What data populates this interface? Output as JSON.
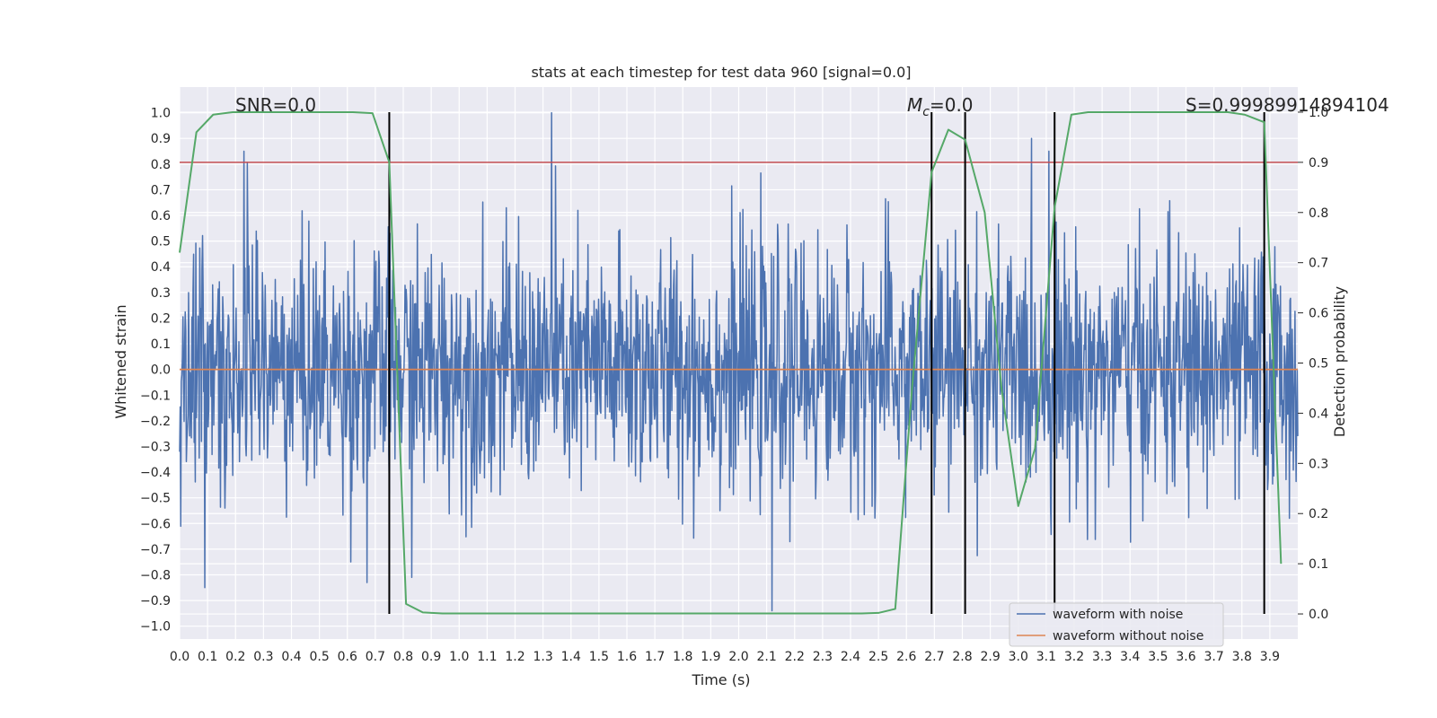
{
  "chart_data": {
    "type": "line",
    "title": "stats at each timestep for test data 960 [signal=0.0]",
    "xlabel": "Time (s)",
    "ylabel_left": "Whitened strain",
    "ylabel_right": "Detection probability",
    "xlim": [
      0.0,
      4.0
    ],
    "ylim_left": [
      -1.05,
      1.1
    ],
    "ylim_right": [
      -0.05,
      1.05
    ],
    "grid": true,
    "x_ticks": [
      "0.0",
      "0.1",
      "0.2",
      "0.3",
      "0.4",
      "0.5",
      "0.6",
      "0.7",
      "0.8",
      "0.9",
      "1.0",
      "1.1",
      "1.2",
      "1.3",
      "1.4",
      "1.5",
      "1.6",
      "1.7",
      "1.8",
      "1.9",
      "2.0",
      "2.1",
      "2.2",
      "2.3",
      "2.4",
      "2.5",
      "2.6",
      "2.7",
      "2.8",
      "2.9",
      "3.0",
      "3.1",
      "3.2",
      "3.3",
      "3.4",
      "3.5",
      "3.6",
      "3.7",
      "3.8",
      "3.9"
    ],
    "y_ticks_left": [
      "1.0",
      "0.9",
      "0.8",
      "0.7",
      "0.6",
      "0.5",
      "0.4",
      "0.3",
      "0.2",
      "0.1",
      "0.0",
      "−0.1",
      "−0.2",
      "−0.3",
      "−0.4",
      "−0.5",
      "−0.6",
      "−0.7",
      "−0.8",
      "−0.9",
      "−1.0"
    ],
    "y_ticks_right": [
      "1.0",
      "0.9",
      "0.8",
      "0.7",
      "0.6",
      "0.5",
      "0.4",
      "0.3",
      "0.2",
      "0.1",
      "0.0"
    ],
    "annotations": {
      "snr": "SNR=0.0",
      "mc_symbol": "M",
      "mc_sub": "c",
      "mc_value": "=0.0",
      "score": "S=0.99989914894104"
    },
    "legend": {
      "placement": "bottom-right",
      "entries": [
        "waveform with noise",
        "waveform without noise"
      ]
    },
    "colors": {
      "noise": "#4c72b0",
      "clean": "#dd8452",
      "probability": "#55a868",
      "threshold": "#c44e52",
      "markers": "#000000",
      "plot_background": "#eaeaf2"
    },
    "threshold_probability": 0.9,
    "marker_times": [
      0.75,
      2.69,
      2.81,
      3.13,
      3.88
    ],
    "probability_series": {
      "name": "",
      "x": [
        0.0,
        0.06,
        0.12,
        0.19,
        0.25,
        0.31,
        0.38,
        0.44,
        0.5,
        0.56,
        0.62,
        0.69,
        0.75,
        0.81,
        0.87,
        0.94,
        1.0,
        1.5,
        2.0,
        2.44,
        2.5,
        2.56,
        2.62,
        2.69,
        2.75,
        2.81,
        2.88,
        2.94,
        3.0,
        3.06,
        3.13,
        3.19,
        3.25,
        3.31,
        3.38,
        3.5,
        3.75,
        3.81,
        3.88,
        3.94
      ],
      "y": [
        0.72,
        0.96,
        0.995,
        1.0,
        1.0,
        1.0,
        1.0,
        1.0,
        1.0,
        1.0,
        1.0,
        0.998,
        0.9,
        0.02,
        0.003,
        0.001,
        0.001,
        0.001,
        0.001,
        0.001,
        0.002,
        0.01,
        0.45,
        0.88,
        0.965,
        0.945,
        0.8,
        0.45,
        0.215,
        0.33,
        0.81,
        0.995,
        1.0,
        1.0,
        1.0,
        1.0,
        1.0,
        0.995,
        0.98,
        0.1
      ]
    },
    "noise_series": {
      "name": "waveform with noise",
      "x_range": [
        0.0,
        4.0
      ],
      "approx_points": 2000,
      "envelope": [
        -0.94,
        1.0
      ],
      "notable_peaks": [
        {
          "x": 1.33,
          "y": 1.0
        },
        {
          "x": 0.23,
          "y": 0.85
        },
        {
          "x": 3.11,
          "y": 0.85
        },
        {
          "x": 2.12,
          "y": -0.94
        },
        {
          "x": 0.09,
          "y": -0.85
        },
        {
          "x": 0.67,
          "y": -0.83
        },
        {
          "x": 0.83,
          "y": -0.81
        }
      ]
    },
    "clean_series": {
      "name": "waveform without noise",
      "x": [
        0.0,
        4.0
      ],
      "y": [
        0.0,
        0.0
      ]
    }
  }
}
